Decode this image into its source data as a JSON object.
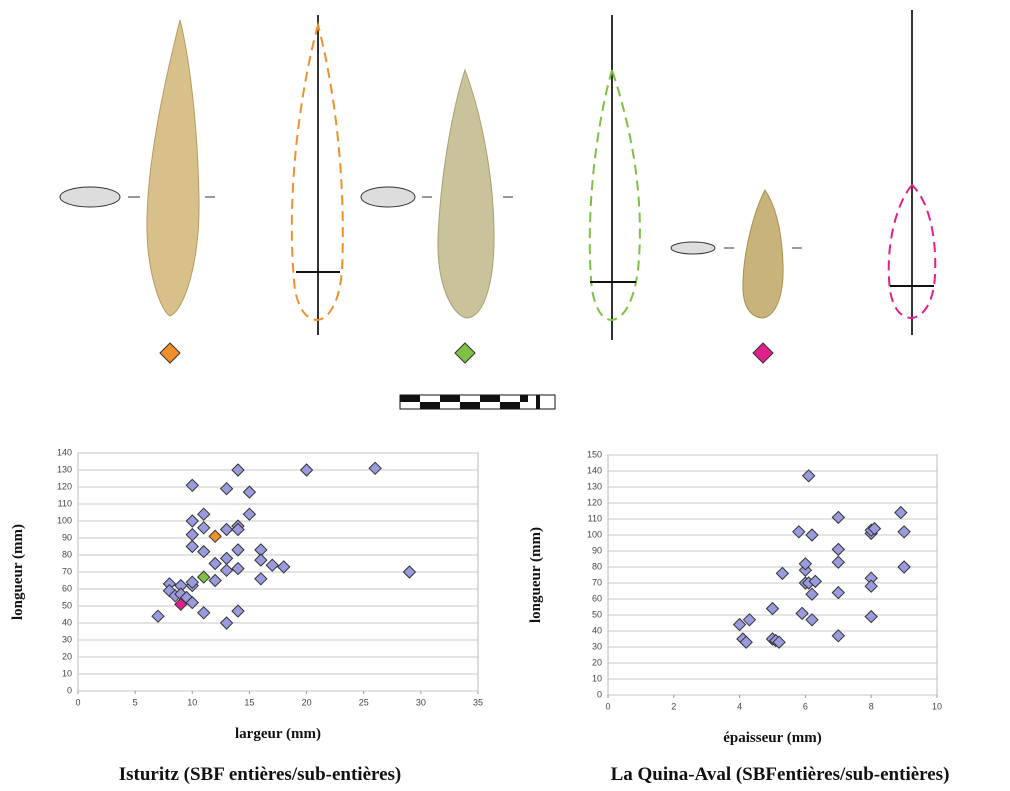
{
  "chart_data": [
    {
      "type": "scatter",
      "title": "Isturitz (SBF entières/sub-entières)",
      "xlabel": "largeur (mm)",
      "ylabel": "longueur (mm)",
      "xlim": [
        0,
        35
      ],
      "xticks": [
        0,
        5,
        10,
        15,
        20,
        25,
        30,
        35
      ],
      "ylim": [
        0,
        140
      ],
      "yticks": [
        0,
        10,
        20,
        30,
        40,
        50,
        60,
        70,
        80,
        90,
        100,
        110,
        120,
        130,
        140
      ],
      "grid": true,
      "series": [
        {
          "color": "#9a9ade",
          "x": [
            7,
            8,
            8,
            8.5,
            9,
            9,
            9.5,
            10,
            10,
            10,
            11,
            10,
            10,
            10,
            10,
            11,
            11,
            11,
            12,
            12,
            13,
            13,
            13,
            13,
            13,
            14,
            14,
            14,
            14,
            14,
            14,
            15,
            15,
            16,
            16,
            16,
            17,
            18,
            20,
            26,
            29
          ],
          "values": [
            44,
            63,
            59,
            56,
            62,
            57,
            55,
            52,
            62,
            64,
            46,
            85,
            92,
            100,
            121,
            104,
            96,
            82,
            65,
            75,
            40,
            71,
            78,
            95,
            119,
            97,
            95,
            83,
            72,
            47,
            130,
            117,
            104,
            83,
            77,
            66,
            74,
            73,
            130,
            131,
            70
          ]
        },
        {
          "color": "#f0902a",
          "x": [
            12
          ],
          "values": [
            91
          ]
        },
        {
          "color": "#7cc044",
          "x": [
            11
          ],
          "values": [
            67
          ]
        },
        {
          "color": "#e0208a",
          "x": [
            9
          ],
          "values": [
            51
          ]
        }
      ]
    },
    {
      "type": "scatter",
      "title": "La Quina-Aval (SBFentières/sub-entières)",
      "xlabel": "épaisseur (mm)",
      "ylabel": "longueur (mm)",
      "xlim": [
        0,
        10
      ],
      "xticks": [
        0,
        2,
        4,
        6,
        8,
        10
      ],
      "ylim": [
        0,
        150
      ],
      "yticks": [
        0,
        10,
        20,
        30,
        40,
        50,
        60,
        70,
        80,
        90,
        100,
        110,
        120,
        130,
        140,
        150
      ],
      "grid": true,
      "series": [
        {
          "color": "#9a9ade",
          "x": [
            4,
            4.1,
            4.2,
            4.3,
            5,
            5,
            5.1,
            5.2,
            5.3,
            5.8,
            5.9,
            6,
            6,
            6,
            6.1,
            6.1,
            6.2,
            6.2,
            6.2,
            6.3,
            7,
            7,
            7,
            7,
            7,
            8,
            8,
            8,
            8,
            8,
            8.1,
            8.9,
            9,
            9
          ],
          "values": [
            44,
            35,
            33,
            47,
            35,
            54,
            34,
            33,
            76,
            102,
            51,
            70,
            78,
            82,
            137,
            70,
            100,
            63,
            47,
            71,
            111,
            91,
            83,
            64,
            37,
            101,
            103,
            73,
            68,
            49,
            104,
            114,
            102,
            80
          ]
        }
      ]
    }
  ]
}
